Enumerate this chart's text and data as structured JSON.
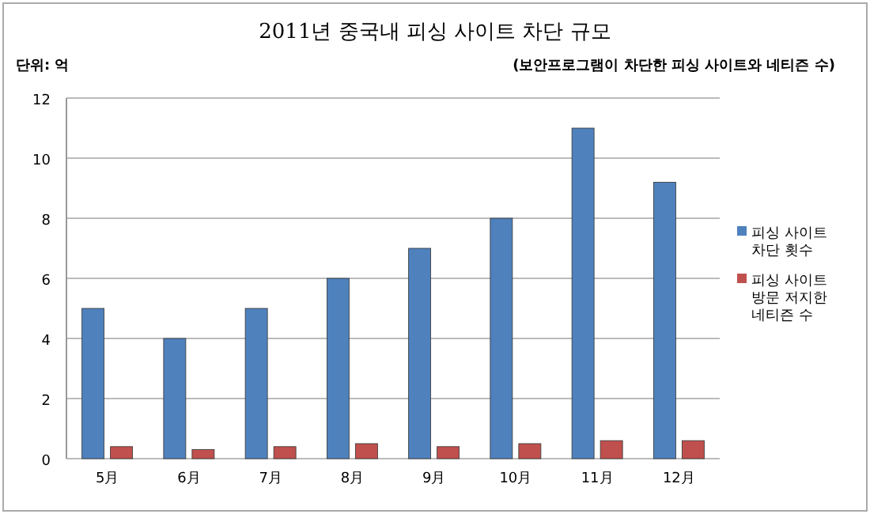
{
  "chart_data": {
    "type": "bar",
    "title": "2011년 중국내 피싱 사이트 차단 규모",
    "subtitle": "(보안프로그램이 차단한 피싱 사이트와 네티즌 수)",
    "annotations": [
      "단위: 억"
    ],
    "categories": [
      "5月",
      "6月",
      "7月",
      "8月",
      "9月",
      "10月",
      "11月",
      "12月"
    ],
    "series": [
      {
        "name": "피싱 사이트 차단 횟수",
        "color": "#4f81bd",
        "values": [
          5,
          4,
          5,
          6,
          7,
          8,
          11,
          9.2
        ]
      },
      {
        "name": "피싱 사이트 방문 저지한 네티즌 수",
        "color": "#c0504d",
        "values": [
          0.4,
          0.3,
          0.4,
          0.5,
          0.4,
          0.5,
          0.6,
          0.6
        ]
      }
    ],
    "ylim": [
      0,
      12
    ],
    "yticks": [
      0,
      2,
      4,
      6,
      8,
      10,
      12
    ],
    "grid": "y",
    "legend": "right"
  }
}
